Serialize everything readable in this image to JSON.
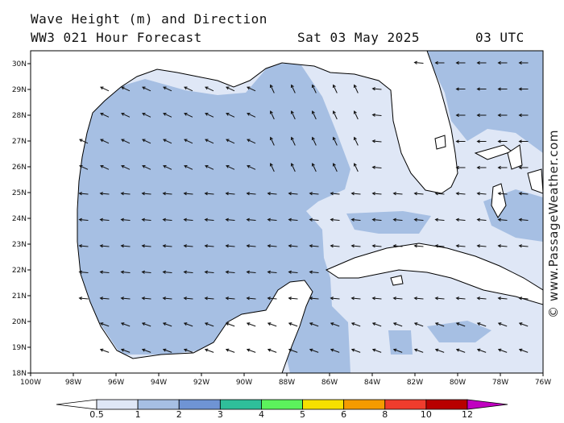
{
  "header": {
    "line1": "Wave Height (m) and Direction",
    "line2_left": "WW3 021 Hour Forecast",
    "date": "Sat 03 May 2025",
    "time": "03 UTC"
  },
  "watermark": "© www.PassageWeather.com",
  "axes": {
    "lon_labels": [
      "100W",
      "98W",
      "96W",
      "94W",
      "92W",
      "90W",
      "88W",
      "86W",
      "84W",
      "82W",
      "80W",
      "78W",
      "76W"
    ],
    "lat_labels": [
      "30N",
      "29N",
      "28N",
      "27N",
      "26N",
      "25N",
      "24N",
      "23N",
      "22N",
      "21N",
      "20N",
      "19N",
      "18N"
    ]
  },
  "colorbar": {
    "labels": [
      "0.5",
      "1",
      "2",
      "3",
      "4",
      "5",
      "6",
      "8",
      "10",
      "12"
    ],
    "colors": [
      "#dfe7f6",
      "#a6bfe3",
      "#6f94d4",
      "#2fbf9a",
      "#5cf25c",
      "#f6e000",
      "#f59b00",
      "#ef3c2d",
      "#b80000",
      "#c000c0"
    ]
  },
  "colors": {
    "band_05_1": "#dfe7f6",
    "band_1_2": "#a6bfe3",
    "land": "#ffffff",
    "coast": "#000000"
  }
}
